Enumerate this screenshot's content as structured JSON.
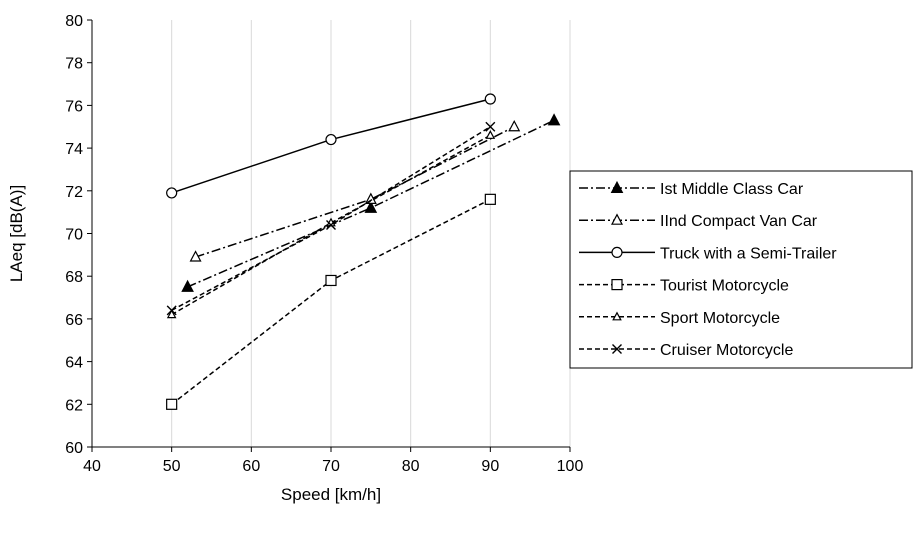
{
  "chart_data": {
    "type": "line",
    "title": "",
    "xlabel": "Speed [km/h]",
    "ylabel": "LAeq [dB(A)]",
    "xlim": [
      40,
      100
    ],
    "ylim": [
      60,
      80
    ],
    "xticks": [
      40,
      50,
      60,
      70,
      80,
      90,
      100
    ],
    "yticks": [
      60,
      62,
      64,
      66,
      68,
      70,
      72,
      74,
      76,
      78,
      80
    ],
    "grid": {
      "vertical": true,
      "horizontal": false
    },
    "legend_position": "right",
    "series": [
      {
        "name": "Ist Middle Class Car",
        "line": "dashdot",
        "marker": "filled-triangle",
        "x": [
          52,
          75,
          98
        ],
        "y": [
          67.5,
          71.2,
          75.3
        ]
      },
      {
        "name": "IInd Compact Van Car",
        "line": "dashdot",
        "marker": "open-triangle",
        "x": [
          53,
          75,
          93
        ],
        "y": [
          68.9,
          71.6,
          75.0
        ]
      },
      {
        "name": "Truck with a Semi-Trailer",
        "line": "solid",
        "marker": "open-circle",
        "x": [
          50,
          70,
          90
        ],
        "y": [
          71.9,
          74.4,
          76.3
        ]
      },
      {
        "name": "Tourist Motorcycle",
        "line": "dashed",
        "marker": "open-square",
        "x": [
          50,
          70,
          90
        ],
        "y": [
          62.0,
          67.8,
          71.6
        ]
      },
      {
        "name": "Sport Motorcycle",
        "line": "dashed",
        "marker": "small-open-triangle",
        "x": [
          50,
          70,
          90
        ],
        "y": [
          66.2,
          70.5,
          74.6
        ]
      },
      {
        "name": "Cruiser Motorcycle",
        "line": "dashed",
        "marker": "cross",
        "x": [
          50,
          70,
          90
        ],
        "y": [
          66.4,
          70.4,
          75.0
        ]
      }
    ]
  }
}
